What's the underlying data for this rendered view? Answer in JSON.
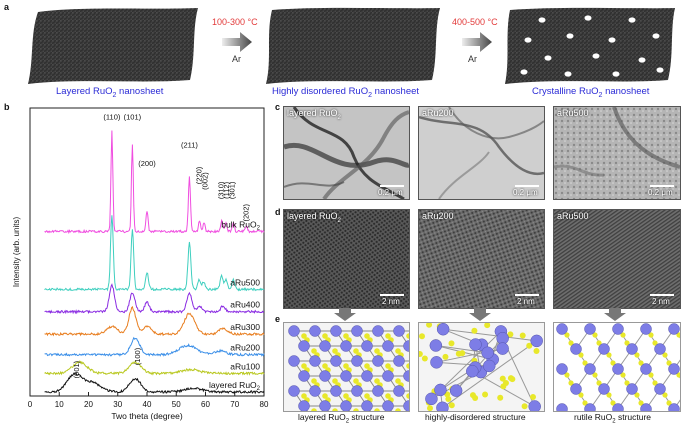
{
  "panel_a": {
    "label": "a",
    "sheets": [
      {
        "caption": "Layered RuO",
        "sub": "2",
        "caption_tail": " nanosheet"
      },
      {
        "caption": "Highly disordered RuO",
        "sub": "2",
        "caption_tail": " nanosheet"
      },
      {
        "caption": "Crystalline RuO",
        "sub": "2",
        "caption_tail": " nanosheet"
      }
    ],
    "arrows": [
      {
        "temp": "100-300 °C",
        "gas": "Ar"
      },
      {
        "temp": "400-500 °C",
        "gas": "Ar"
      }
    ]
  },
  "panel_b": {
    "label": "b"
  },
  "panel_c": {
    "label": "c",
    "images": [
      {
        "label": "layered RuO",
        "sub": "2",
        "scale": "0.2 μm"
      },
      {
        "label": "aRu200",
        "sub": "",
        "scale": "0.2 μm"
      },
      {
        "label": "aRu500",
        "sub": "",
        "scale": "0.2 μm"
      }
    ]
  },
  "panel_d": {
    "label": "d",
    "images": [
      {
        "label": "layered RuO",
        "sub": "2",
        "scale": "2 nm"
      },
      {
        "label": "aRu200",
        "sub": "",
        "scale": "2 nm"
      },
      {
        "label": "aRu500",
        "sub": "",
        "scale": "2 nm"
      }
    ]
  },
  "panel_e": {
    "label": "e",
    "structures": [
      {
        "caption": "layered RuO",
        "sub": "2",
        "caption_tail": " structure"
      },
      {
        "caption": "highly-disordered structure",
        "sub": "",
        "caption_tail": ""
      },
      {
        "caption": "rutile RuO",
        "sub": "2",
        "caption_tail": " structure"
      }
    ]
  },
  "chart_data": {
    "type": "line",
    "title": "",
    "xlabel": "Two theta (degree)",
    "ylabel": "Intensity (arb. units)",
    "xlim": [
      0,
      80
    ],
    "xticks": [
      0,
      10,
      20,
      30,
      40,
      50,
      60,
      70,
      80
    ],
    "series": [
      {
        "name": "layered RuO2",
        "label": "layered RuO",
        "sub": "2",
        "color": "#111111",
        "offset": 0,
        "peaks": [
          [
            15,
            0.9,
            2.5
          ],
          [
            21,
            0.5,
            3
          ],
          [
            36,
            0.7,
            2
          ],
          [
            56,
            0.2,
            3
          ]
        ]
      },
      {
        "name": "aRu100",
        "label": "aRu100",
        "sub": "",
        "color": "#b9c820",
        "offset": 1.0,
        "peaks": [
          [
            17,
            0.6,
            2.5
          ],
          [
            36,
            0.6,
            2
          ],
          [
            55,
            0.2,
            3
          ]
        ]
      },
      {
        "name": "aRu200",
        "label": "aRu200",
        "sub": "",
        "color": "#3b8fe8",
        "offset": 2.0,
        "peaks": [
          [
            36,
            0.9,
            1.5
          ],
          [
            54,
            0.5,
            3
          ],
          [
            65,
            0.2,
            2
          ]
        ]
      },
      {
        "name": "aRu300",
        "label": "aRu300",
        "sub": "",
        "color": "#e87d1e",
        "offset": 3.1,
        "peaks": [
          [
            28,
            0.4,
            2
          ],
          [
            35,
            1.4,
            1.2
          ],
          [
            40,
            0.4,
            1.5
          ],
          [
            54.5,
            1.1,
            1.8
          ],
          [
            66,
            0.3,
            1.5
          ]
        ]
      },
      {
        "name": "aRu400",
        "label": "aRu400",
        "sub": "",
        "color": "#8a2be2",
        "offset": 4.3,
        "peaks": [
          [
            28,
            1.4,
            0.9
          ],
          [
            35,
            1.0,
            0.9
          ],
          [
            40,
            0.5,
            0.8
          ],
          [
            54.5,
            1.0,
            0.9
          ],
          [
            58,
            0.3,
            0.8
          ],
          [
            66,
            0.3,
            0.8
          ]
        ]
      },
      {
        "name": "aRu500",
        "label": "aRu500",
        "sub": "",
        "color": "#3fcfbf",
        "offset": 5.5,
        "peaks": [
          [
            28,
            4.0,
            0.45
          ],
          [
            35,
            3.2,
            0.45
          ],
          [
            40,
            0.9,
            0.5
          ],
          [
            54.5,
            2.5,
            0.5
          ],
          [
            57.8,
            0.5,
            0.5
          ],
          [
            59.4,
            0.4,
            0.5
          ],
          [
            65.5,
            0.7,
            0.5
          ],
          [
            67,
            0.5,
            0.5
          ],
          [
            69.5,
            0.5,
            0.5
          ]
        ]
      },
      {
        "name": "bulk RuO2",
        "label": "bulk RuO",
        "sub": "2",
        "color": "#f04ee0",
        "offset": 8.6,
        "peaks": [
          [
            28,
            5.4,
            0.32
          ],
          [
            35,
            4.6,
            0.32
          ],
          [
            40,
            1.1,
            0.35
          ],
          [
            54.5,
            3.0,
            0.35
          ],
          [
            58,
            0.6,
            0.35
          ],
          [
            59.5,
            0.5,
            0.35
          ],
          [
            65.6,
            0.6,
            0.35
          ],
          [
            67,
            0.5,
            0.35
          ],
          [
            69.5,
            0.5,
            0.35
          ],
          [
            74,
            0.3,
            0.35
          ]
        ]
      }
    ],
    "annotations": [
      {
        "text": "(110)",
        "x": 28
      },
      {
        "text": "(101)",
        "x": 35
      },
      {
        "text": "(200)",
        "x": 40
      },
      {
        "text": "(211)",
        "x": 54.5
      },
      {
        "text": "(220)",
        "x": 58
      },
      {
        "text": "(002)",
        "x": 60
      },
      {
        "text": "(310)",
        "x": 65.5
      },
      {
        "text": "(112)",
        "x": 67.3
      },
      {
        "text": "(301)",
        "x": 69.3
      },
      {
        "text": "(202)",
        "x": 74
      },
      {
        "text": "(001)",
        "x": 16
      },
      {
        "text": "(100)",
        "x": 37
      }
    ]
  }
}
